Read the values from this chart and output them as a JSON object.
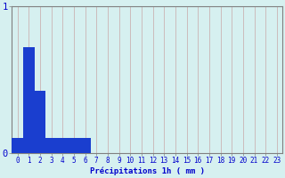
{
  "values": [
    0.1,
    0.72,
    0.42,
    0.1,
    0.1,
    0.1,
    0.1,
    0.0,
    0.0,
    0.0,
    0.0,
    0.0,
    0.0,
    0.0,
    0.0,
    0.0,
    0.0,
    0.0,
    0.0,
    0.0,
    0.0,
    0.0,
    0.0,
    0.0
  ],
  "bar_color": "#1a3ecf",
  "background_color": "#d6f0f0",
  "grid_color": "#c8a8a8",
  "axis_color": "#808080",
  "text_color": "#0000cc",
  "xlabel": "Précipitations 1h ( mm )",
  "ylim": [
    0,
    1
  ],
  "yticks": [
    0,
    1
  ],
  "num_bars": 24,
  "xlabel_fontsize": 6.5,
  "tick_fontsize": 5.5,
  "ytick_fontsize": 7.5
}
